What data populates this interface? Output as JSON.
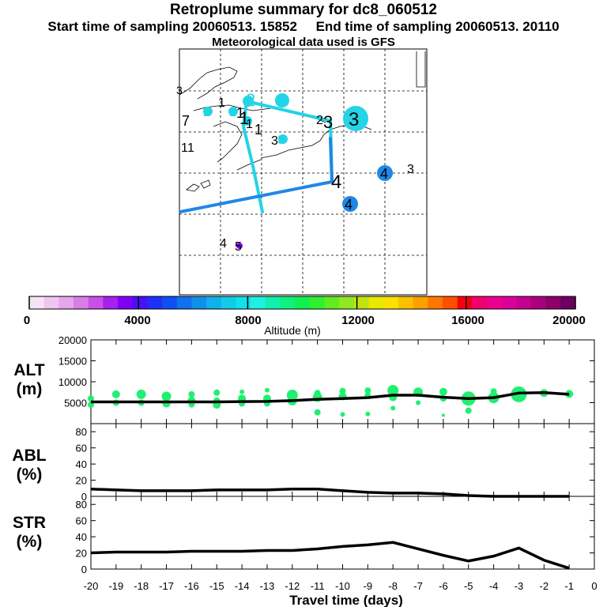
{
  "header": {
    "title": "Retroplume summary for dc8_060512",
    "start": "Start time of sampling 20060513. 15852",
    "end": "End time of sampling 20060513. 20110",
    "met": "Meteorological data used is GFS"
  },
  "colorbar": {
    "ticks": [
      "0",
      "4000",
      "8000",
      "12000",
      "16000",
      "20000"
    ],
    "label": "Altitude (m)",
    "colors": [
      "#f6e3f6",
      "#efc6ef",
      "#e6a6ea",
      "#d87ee4",
      "#c850e6",
      "#a620ee",
      "#8000f4",
      "#4a10f8",
      "#2030f6",
      "#1050f2",
      "#1070ee",
      "#1090ea",
      "#10b0ea",
      "#10cce8",
      "#10e0ea",
      "#20f0e0",
      "#10f0b0",
      "#10f080",
      "#10f050",
      "#30f030",
      "#60ec20",
      "#90e820",
      "#c0e410",
      "#e8e800",
      "#fce000",
      "#fcc000",
      "#fca000",
      "#fc7800",
      "#fc5000",
      "#f40010",
      "#f0006c",
      "#ec0090",
      "#dc0098",
      "#c40090",
      "#a8007c",
      "#8c0068",
      "#6c0060"
    ]
  },
  "map": {
    "labels": [
      {
        "t": "2",
        "c": "#22d4e6"
      },
      {
        "t": "1",
        "c": "#000"
      },
      {
        "t": "1",
        "c": "#22d4e6"
      },
      {
        "t": "2",
        "c": "#22d4e6"
      },
      {
        "t": "2",
        "c": "#22d4e6"
      },
      {
        "t": "7",
        "c": "#000"
      },
      {
        "t": "1",
        "c": "#000"
      },
      {
        "t": "1",
        "c": "#000"
      },
      {
        "t": "1",
        "c": "#000"
      },
      {
        "t": "1",
        "c": "#000"
      },
      {
        "t": "1",
        "c": "#000"
      },
      {
        "t": "1",
        "c": "#000"
      },
      {
        "t": "3",
        "c": "#22d4e6"
      },
      {
        "t": "2",
        "c": "#000"
      },
      {
        "t": "3",
        "c": "#000"
      },
      {
        "t": "3",
        "c": "#000"
      },
      {
        "t": "3",
        "c": "#000"
      },
      {
        "t": "4",
        "c": "#000"
      },
      {
        "t": "4",
        "c": "#000"
      },
      {
        "t": "3",
        "c": "#000"
      },
      {
        "t": "4",
        "c": "#000"
      },
      {
        "t": "4",
        "c": "#000"
      },
      {
        "t": "5",
        "c": "#000"
      },
      {
        "t": "3",
        "c": "#000"
      }
    ]
  },
  "chart_data": [
    {
      "type": "line",
      "panel": "ALT",
      "ylabel": "ALT\n(m)",
      "yticks": [
        "20000",
        "15000",
        "10000",
        "5000"
      ],
      "ylim": [
        0,
        20000
      ],
      "x": [
        -20,
        -19,
        -18,
        -17,
        -16,
        -15,
        -14,
        -13,
        -12,
        -11,
        -10,
        -9,
        -8,
        -7,
        -6,
        -5,
        -4,
        -3,
        -2,
        -1
      ],
      "values": [
        5200,
        5200,
        5200,
        5200,
        5200,
        5200,
        5250,
        5300,
        5500,
        5800,
        6000,
        6200,
        6800,
        6800,
        6300,
        6000,
        6200,
        7300,
        7400,
        7000
      ]
    },
    {
      "type": "line",
      "panel": "ABL",
      "ylabel": "ABL\n(%)",
      "yticks": [
        "80",
        "60",
        "40",
        "20",
        "0"
      ],
      "ylim": [
        0,
        90
      ],
      "x": [
        -20,
        -19,
        -18,
        -17,
        -16,
        -15,
        -14,
        -13,
        -12,
        -11,
        -10,
        -9,
        -8,
        -7,
        -6,
        -5,
        -4,
        -3,
        -2,
        -1
      ],
      "values": [
        9,
        8,
        7,
        7,
        7,
        8,
        8,
        8,
        9,
        9,
        7,
        5,
        4,
        4,
        3,
        1,
        0,
        0,
        0,
        0
      ]
    },
    {
      "type": "line",
      "panel": "STR",
      "ylabel": "STR\n(%)",
      "yticks": [
        "80",
        "60",
        "40",
        "20",
        "0"
      ],
      "ylim": [
        0,
        90
      ],
      "x": [
        -20,
        -19,
        -18,
        -17,
        -16,
        -15,
        -14,
        -13,
        -12,
        -11,
        -10,
        -9,
        -8,
        -7,
        -6,
        -5,
        -4,
        -3,
        -2,
        -1
      ],
      "values": [
        20,
        21,
        21,
        21,
        22,
        22,
        22,
        23,
        23,
        25,
        28,
        30,
        33,
        25,
        17,
        10,
        16,
        26,
        11,
        1
      ],
      "xlabel": "Travel time (days)",
      "xticks": [
        "-20",
        "-19",
        "-18",
        "-17",
        "-16",
        "-15",
        "-14",
        "-13",
        "-12",
        "-11",
        "-10",
        "-9",
        "-8",
        "-7",
        "-6",
        "-5",
        "-4",
        "-3",
        "-2",
        "-1",
        "0"
      ]
    }
  ]
}
